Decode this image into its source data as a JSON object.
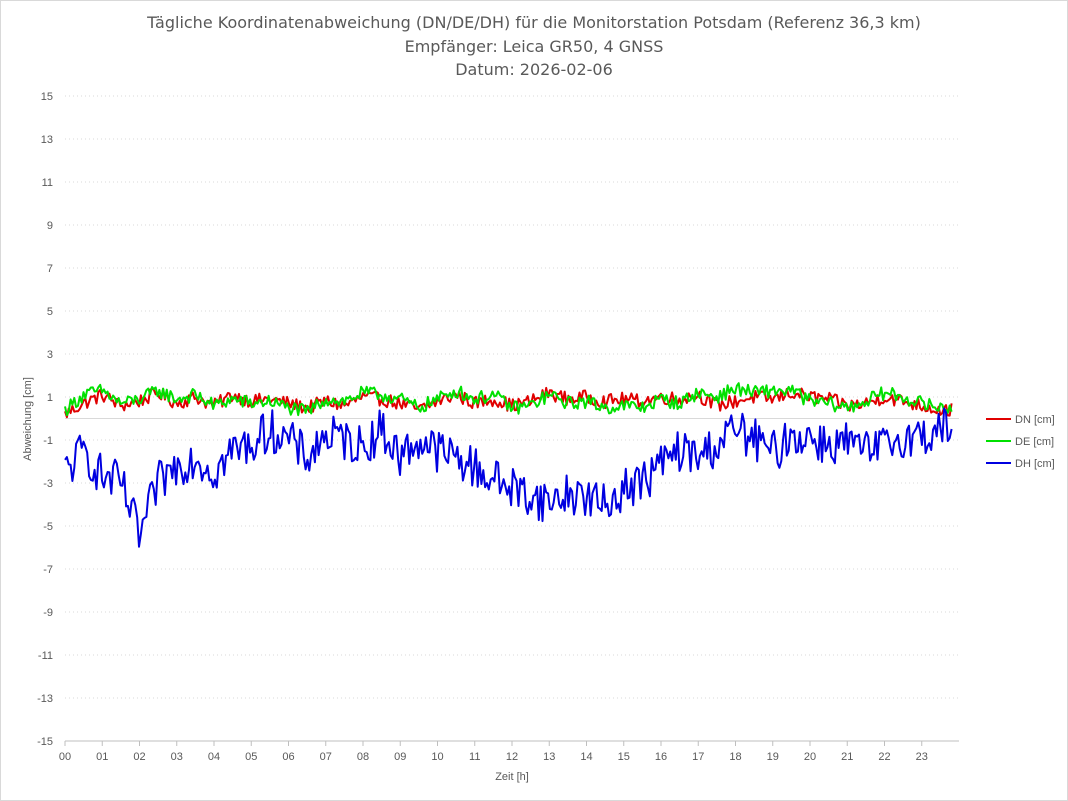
{
  "chart_data": {
    "type": "line",
    "title_lines": [
      "Tägliche Koordinatenabweichung (DN/DE/DH) für die Monitorstation Potsdam (Referenz 36,3 km)",
      "Empfänger: Leica GR50, 4 GNSS",
      "Datum: 2026-02-06"
    ],
    "xlabel": "Zeit [h]",
    "ylabel": "Abweichung [cm]",
    "xlim": [
      0,
      24
    ],
    "ylim": [
      -15,
      15
    ],
    "yticks": [
      "15",
      "13",
      "11",
      "9",
      "7",
      "5",
      "3",
      "1",
      "-1",
      "-3",
      "-5",
      "-7",
      "-9",
      "-11",
      "-13",
      "-15"
    ],
    "xticks": [
      "00",
      "01",
      "02",
      "03",
      "04",
      "05",
      "06",
      "07",
      "08",
      "09",
      "10",
      "11",
      "12",
      "13",
      "14",
      "15",
      "16",
      "17",
      "18",
      "19",
      "20",
      "21",
      "22",
      "23"
    ],
    "legend_position": "right",
    "grid": "horizontal-dotted",
    "x_step_hours": 0.5,
    "series": [
      {
        "name": "DN [cm]",
        "color": "#e00000",
        "values": [
          0.2,
          0.7,
          1.1,
          0.6,
          0.8,
          1.2,
          0.7,
          1.0,
          0.6,
          1.1,
          0.8,
          0.9,
          0.7,
          0.5,
          0.8,
          0.6,
          1.0,
          0.9,
          0.7,
          0.4,
          0.8,
          1.1,
          0.7,
          0.9,
          0.6,
          0.8,
          1.2,
          0.9,
          1.0,
          0.8,
          0.9,
          0.8,
          1.0,
          0.9,
          1.1,
          0.6,
          0.8,
          1.0,
          0.9,
          1.2,
          1.0,
          0.9,
          0.6,
          0.7,
          1.0,
          0.8,
          0.6,
          0.4
        ]
      },
      {
        "name": "DE [cm]",
        "color": "#00e000",
        "values": [
          0.4,
          1.1,
          1.3,
          0.7,
          0.9,
          1.3,
          0.9,
          1.1,
          0.6,
          0.9,
          0.7,
          0.8,
          0.5,
          0.3,
          0.9,
          0.8,
          1.2,
          1.1,
          0.9,
          0.5,
          0.9,
          1.3,
          0.9,
          1.1,
          0.5,
          0.6,
          1.1,
          0.7,
          0.8,
          0.5,
          0.6,
          0.5,
          0.9,
          0.7,
          1.2,
          1.0,
          1.4,
          1.2,
          1.3,
          1.3,
          0.8,
          0.7,
          0.5,
          0.8,
          1.2,
          1.0,
          0.7,
          0.5
        ]
      },
      {
        "name": "DH [cm]",
        "color": "#0000e0",
        "values": [
          -2.5,
          -1.5,
          -2.7,
          -3.0,
          -5.5,
          -3.0,
          -2.2,
          -1.8,
          -2.5,
          -1.5,
          -1.2,
          -0.5,
          -1.0,
          -1.8,
          -0.8,
          -1.0,
          -1.3,
          -0.5,
          -1.8,
          -1.0,
          -1.5,
          -1.8,
          -2.3,
          -2.8,
          -3.2,
          -3.6,
          -3.9,
          -3.5,
          -3.6,
          -4.1,
          -3.2,
          -3.0,
          -2.1,
          -1.5,
          -1.8,
          -1.2,
          -0.5,
          -1.0,
          -1.6,
          -0.8,
          -0.9,
          -1.2,
          -1.1,
          -1.6,
          -1.3,
          -0.8,
          -0.9,
          -0.4
        ]
      }
    ]
  }
}
